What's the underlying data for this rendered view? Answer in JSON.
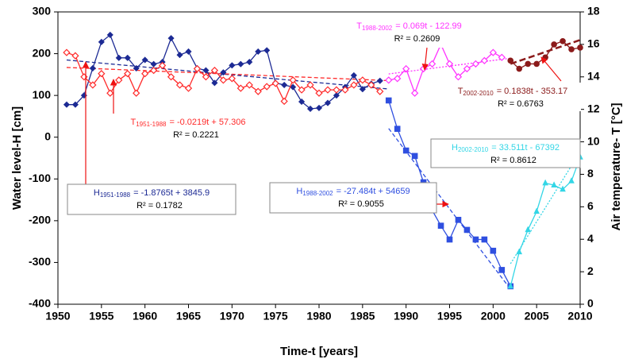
{
  "chart_data": {
    "type": "line",
    "x_label": "Time-t [years]",
    "y_label": "Water level-H [cm]",
    "y2_label": "Air temperature- T [°C]",
    "xlim": [
      1950,
      2010
    ],
    "xticks": [
      1950,
      1955,
      1960,
      1965,
      1970,
      1975,
      1980,
      1985,
      1990,
      1995,
      2000,
      2005,
      2010
    ],
    "ylim": [
      -400,
      300
    ],
    "yticks": [
      -400,
      -300,
      -200,
      -100,
      0,
      100,
      200,
      300
    ],
    "y2lim": [
      0,
      18
    ],
    "y2ticks": [
      0,
      2,
      4,
      6,
      8,
      10,
      12,
      14,
      16,
      18
    ],
    "grid": false,
    "series": [
      {
        "color": "#1c2a94",
        "marker": "diamond",
        "axis": "y",
        "x": [
          1951,
          1952,
          1953,
          1954,
          1955,
          1956,
          1957,
          1958,
          1959,
          1960,
          1961,
          1962,
          1963,
          1964,
          1965,
          1966,
          1967,
          1968,
          1969,
          1970,
          1971,
          1972,
          1973,
          1974,
          1975,
          1976,
          1977,
          1978,
          1979,
          1980,
          1981,
          1982,
          1983,
          1984,
          1985,
          1986,
          1987
        ],
        "values": [
          78,
          78,
          100,
          165,
          228,
          245,
          190,
          190,
          165,
          185,
          175,
          180,
          237,
          197,
          205,
          165,
          160,
          130,
          155,
          172,
          175,
          180,
          205,
          208,
          130,
          125,
          120,
          85,
          68,
          70,
          82,
          100,
          120,
          148,
          115,
          128,
          135
        ]
      },
      {
        "color": "#2f4fe0",
        "marker": "square",
        "axis": "y",
        "x": [
          1988,
          1989,
          1990,
          1991,
          1992,
          1993,
          1994,
          1995,
          1996,
          1997,
          1998,
          1999,
          2000,
          2001,
          2002
        ],
        "values": [
          88,
          20,
          -32,
          -45,
          -108,
          -175,
          -212,
          -245,
          -198,
          -222,
          -245,
          -245,
          -272,
          -318,
          -357
        ]
      },
      {
        "color": "#33d6e6",
        "marker": "triangle",
        "axis": "y",
        "x": [
          2002,
          2003,
          2004,
          2005,
          2006,
          2007,
          2008,
          2009,
          2010
        ],
        "values": [
          -357,
          -275,
          -222,
          -178,
          -110,
          -115,
          -125,
          -105,
          -48
        ]
      },
      {
        "color": "#ff2a2a",
        "marker": "diamond-open",
        "axis": "y2",
        "x": [
          1951,
          1952,
          1953,
          1954,
          1955,
          1956,
          1957,
          1958,
          1959,
          1960,
          1961,
          1962,
          1963,
          1964,
          1965,
          1966,
          1967,
          1968,
          1969,
          1970,
          1971,
          1972,
          1973,
          1974,
          1975,
          1976,
          1977,
          1978,
          1979,
          1980,
          1981,
          1982,
          1983,
          1984,
          1985,
          1986,
          1987
        ],
        "values": [
          15.5,
          15.3,
          14.0,
          13.5,
          14.2,
          13.0,
          13.8,
          14.2,
          13.0,
          14.2,
          14.4,
          14.7,
          14.0,
          13.5,
          13.3,
          14.5,
          14.0,
          14.4,
          13.8,
          13.9,
          13.3,
          13.5,
          13.1,
          13.4,
          13.6,
          12.5,
          13.8,
          13.2,
          13.5,
          13.0,
          13.2,
          13.2,
          13.2,
          13.5,
          13.8,
          13.5,
          13.1
        ]
      },
      {
        "color": "#ff33ff",
        "marker": "diamond-open",
        "axis": "y2",
        "x": [
          1988,
          1989,
          1990,
          1991,
          1992,
          1993,
          1994,
          1995,
          1996,
          1997,
          1998,
          1999,
          2000,
          2001
        ],
        "values": [
          13.8,
          13.9,
          14.5,
          13.0,
          14.5,
          14.8,
          16.0,
          14.8,
          14.0,
          14.5,
          14.8,
          15.0,
          15.5,
          15.2
        ]
      },
      {
        "color": "#8b1a1a",
        "marker": "circle",
        "axis": "y2",
        "x": [
          2002,
          2003,
          2004,
          2005,
          2006,
          2007,
          2008,
          2009,
          2010
        ],
        "values": [
          15.0,
          14.5,
          14.8,
          14.8,
          15.2,
          16.0,
          16.2,
          15.7,
          15.8
        ]
      }
    ],
    "annotations": [
      {
        "symbol": "H",
        "sub": "1951-1988",
        "equation": "= -1.8765t + 3845.9",
        "r2": "R² = 0.1782",
        "color": "#1c2a94",
        "dash": "dashed",
        "axis": "y",
        "trend_x": [
          1951,
          1988
        ],
        "trend_values": [
          184.85,
          115.4
        ]
      },
      {
        "symbol": "H",
        "sub": "1988-2002",
        "equation": "= -27.484t + 54659",
        "r2": "R² = 0.9055",
        "color": "#2f4fe0",
        "dash": "dashed",
        "axis": "y",
        "trend_x": [
          1988,
          2002
        ],
        "trend_values": [
          20.8,
          -364
        ]
      },
      {
        "symbol": "H",
        "sub": "2002-2010",
        "equation": "= 33.511t - 67392",
        "r2": "R² = 0.8612",
        "color": "#33d6e6",
        "dash": "dotted",
        "axis": "y",
        "trend_x": [
          2002,
          2010
        ],
        "trend_values": [
          -303,
          -35
        ]
      },
      {
        "symbol": "T",
        "sub": "1951-1988",
        "equation": "= -0.0219t + 57.306",
        "r2": "R² = 0.2221",
        "color": "#ff2a2a",
        "dash": "dashed",
        "axis": "y2",
        "trend_x": [
          1951,
          1988
        ],
        "trend_values": [
          14.58,
          13.77
        ]
      },
      {
        "symbol": "T",
        "sub": "1988-2002",
        "equation": "= 0.069t - 122.99",
        "r2": "R² = 0.2609",
        "color": "#ff33ff",
        "dash": "dotted",
        "axis": "y2",
        "trend_x": [
          1988,
          2002
        ],
        "trend_values": [
          14.18,
          15.15
        ]
      },
      {
        "symbol": "T",
        "sub": "2002-2010",
        "equation": "= 0.1838t - 353.17",
        "r2": "R² = 0.6763",
        "color": "#8b1a1a",
        "dash": "thick",
        "axis": "y2",
        "trend_x": [
          2002,
          2010
        ],
        "trend_values": [
          14.8,
          16.27
        ]
      }
    ]
  }
}
